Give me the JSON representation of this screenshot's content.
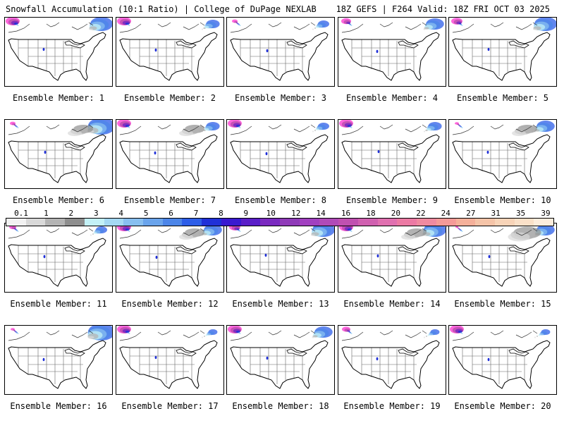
{
  "header": {
    "left": "Snowfall Accumulation (10:1 Ratio) | College of DuPage NEXLAB",
    "right": "18Z GEFS | F264 Valid: 18Z FRI OCT 03 2025"
  },
  "legend": {
    "ticks": [
      "0.1",
      "1",
      "2",
      "3",
      "4",
      "5",
      "6",
      "7",
      "8",
      "9",
      "10",
      "12",
      "14",
      "16",
      "18",
      "20",
      "22",
      "24",
      "27",
      "31",
      "35",
      "39"
    ],
    "colors": [
      "#f2f2f2",
      "#d9d9d9",
      "#b4b4b4",
      "#8e8e8e",
      "#c3f1f7",
      "#a4d8f3",
      "#88bff0",
      "#6aa4ec",
      "#4c85e8",
      "#2e5ee8",
      "#2030d8",
      "#3a1ad0",
      "#5a1ec8",
      "#7a2ac0",
      "#8f3ab8",
      "#a140c0",
      "#b04ab8",
      "#c050b0",
      "#d060b0",
      "#e070b0",
      "#ec7aa4",
      "#f08aa0",
      "#f59a98",
      "#f5b09a",
      "#f5c4a8",
      "#f8d4b8",
      "#fae0c8",
      "#fcecdc"
    ]
  },
  "members": [
    {
      "label": "Ensemble Member: 1"
    },
    {
      "label": "Ensemble Member: 2"
    },
    {
      "label": "Ensemble Member: 3"
    },
    {
      "label": "Ensemble Member: 4"
    },
    {
      "label": "Ensemble Member: 5"
    },
    {
      "label": "Ensemble Member: 6"
    },
    {
      "label": "Ensemble Member: 7"
    },
    {
      "label": "Ensemble Member: 8"
    },
    {
      "label": "Ensemble Member: 9"
    },
    {
      "label": "Ensemble Member: 10"
    },
    {
      "label": "Ensemble Member: 11"
    },
    {
      "label": "Ensemble Member: 12"
    },
    {
      "label": "Ensemble Member: 13"
    },
    {
      "label": "Ensemble Member: 14"
    },
    {
      "label": "Ensemble Member: 15"
    },
    {
      "label": "Ensemble Member: 16"
    },
    {
      "label": "Ensemble Member: 17"
    },
    {
      "label": "Ensemble Member: 18"
    },
    {
      "label": "Ensemble Member: 19"
    },
    {
      "label": "Ensemble Member: 20"
    }
  ]
}
